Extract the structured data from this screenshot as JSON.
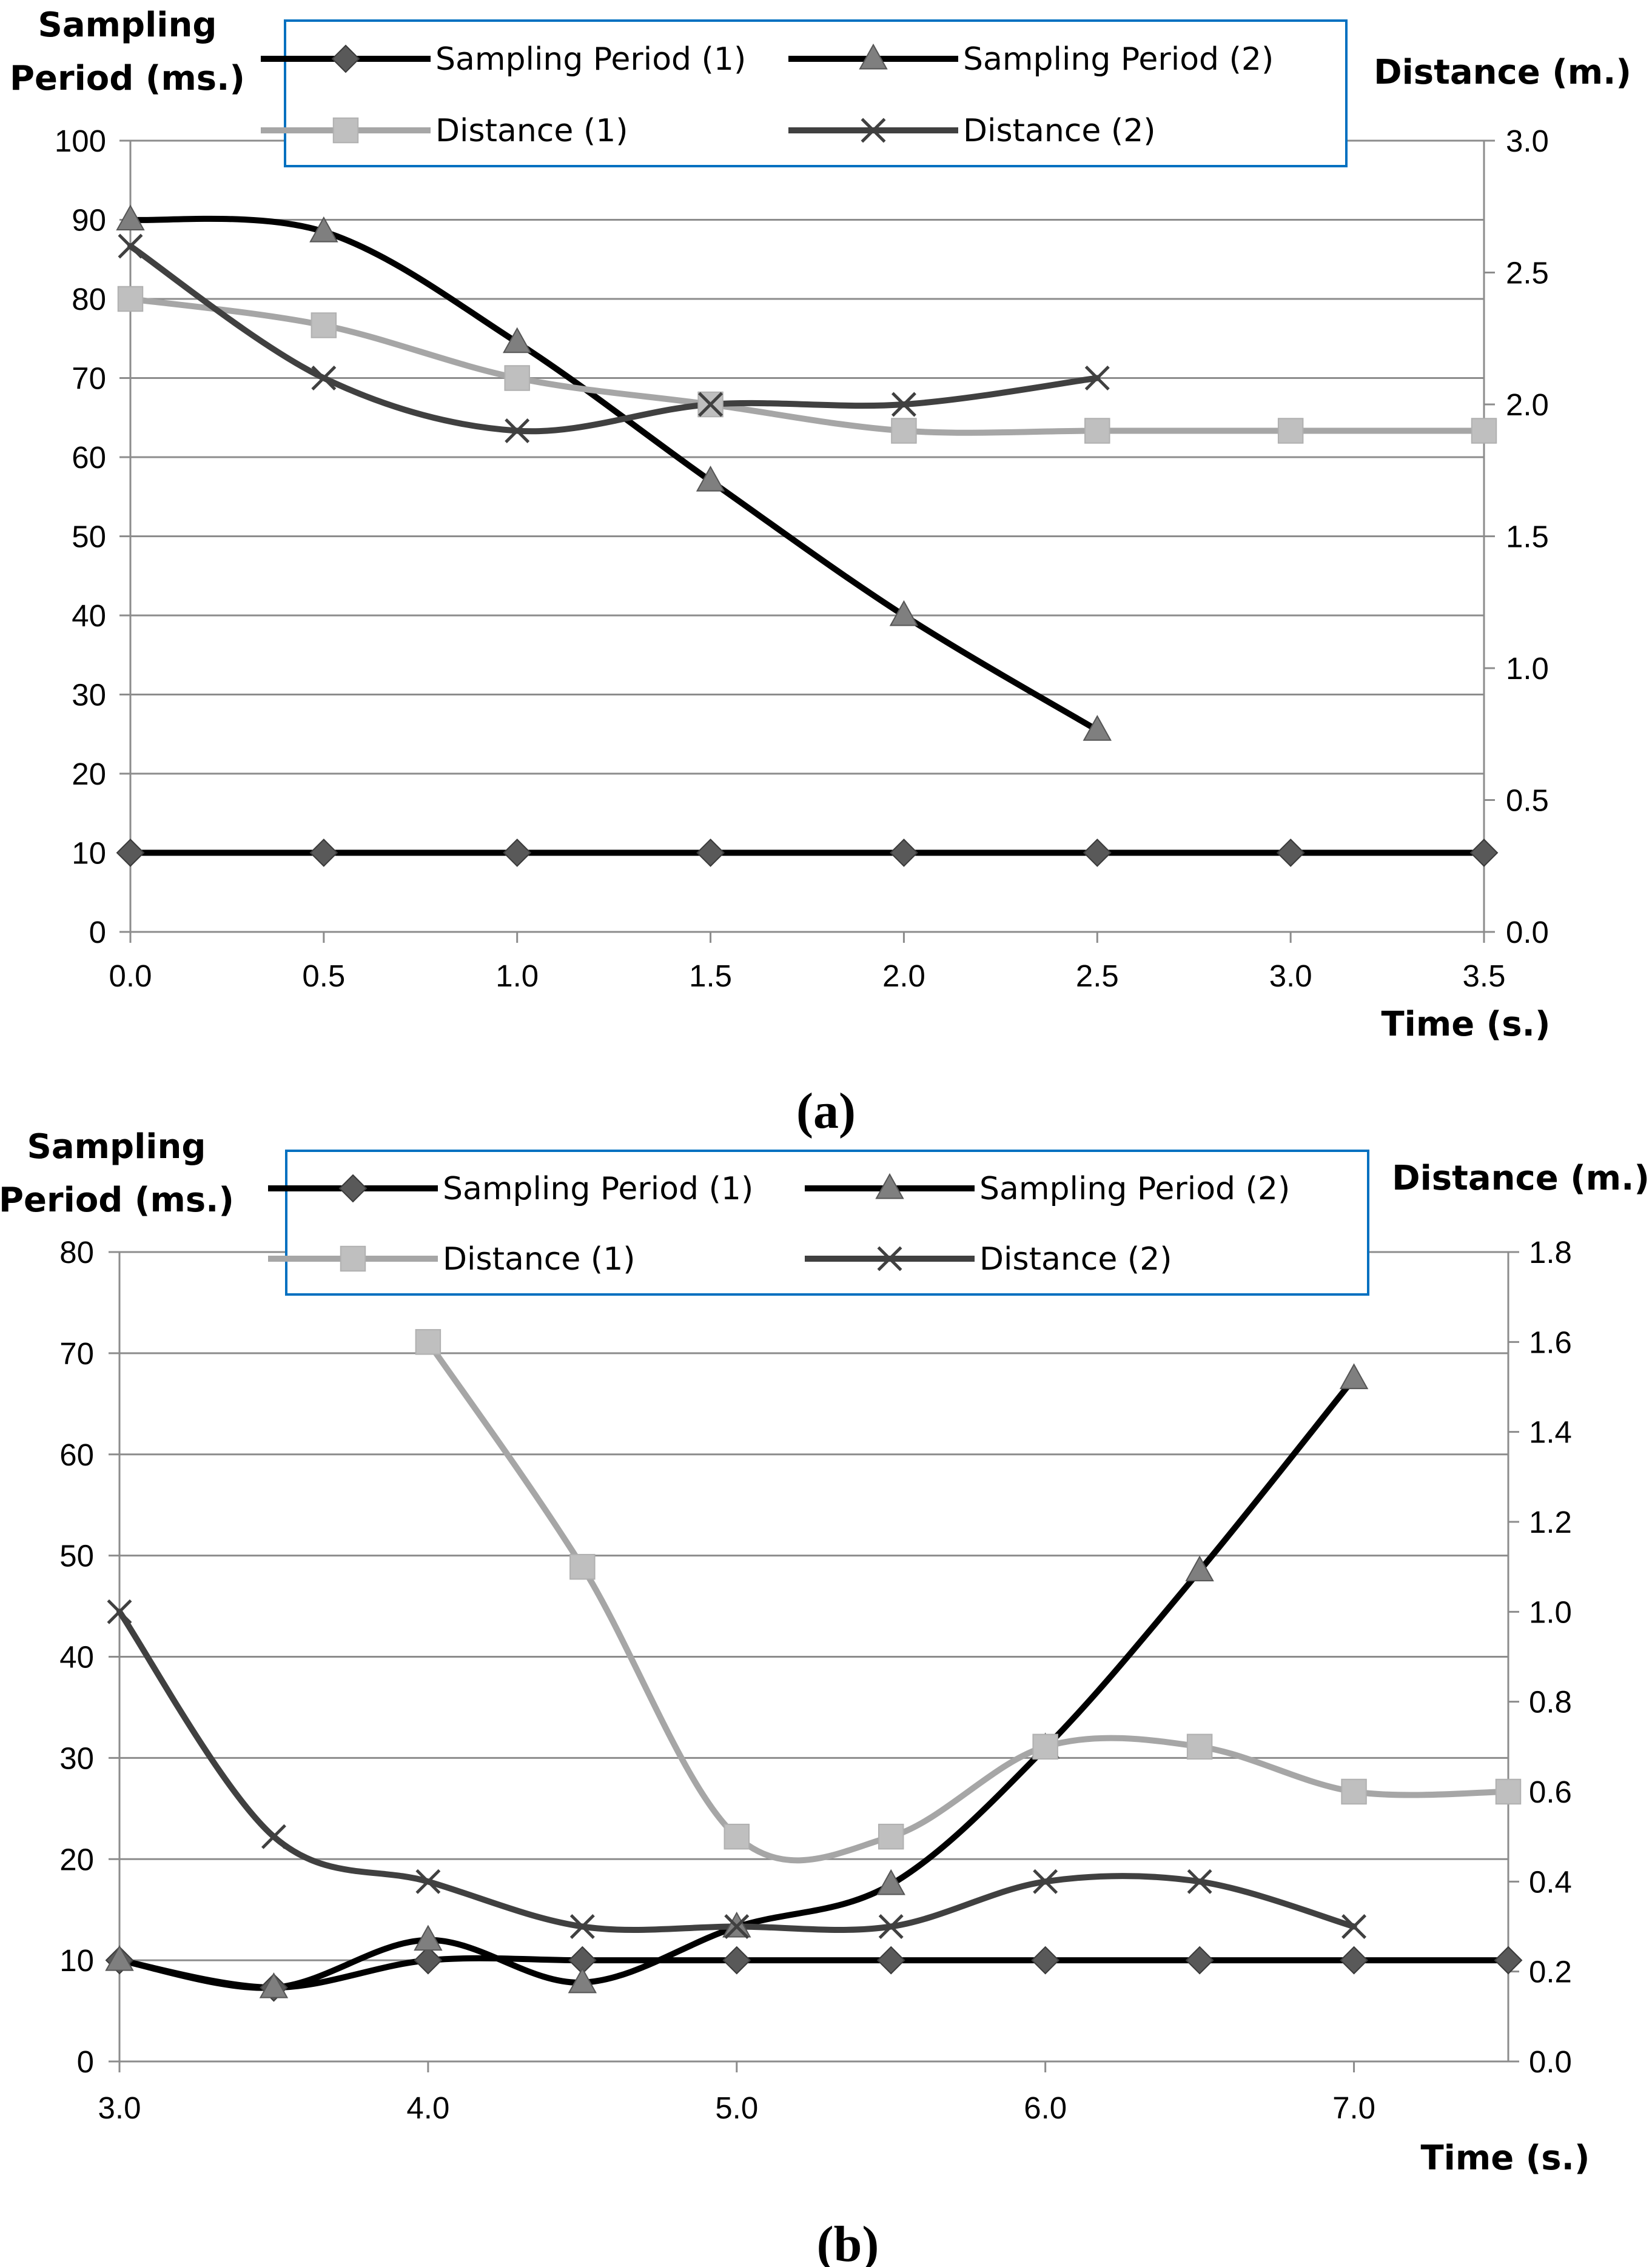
{
  "colors": {
    "sp1": "#000000",
    "sp2": "#000000",
    "d1": "#a6a6a6",
    "d2": "#404040",
    "sp1_marker": "#595959",
    "sp2_marker": "#7f7f7f",
    "d1_marker": "#bfbfbf",
    "grid": "#8c8c8c",
    "legend_border": "#0070c0"
  },
  "chart_data": [
    {
      "type": "line",
      "panel_label": "(a)",
      "ylabel_lines": [
        "Sampling",
        "Period (ms.)"
      ],
      "y2label": "Distance (m.)",
      "xlabel": "Time (s.)",
      "xlim": [
        0,
        3.5
      ],
      "x_ticks": [
        "0.0",
        "0.5",
        "1.0",
        "1.5",
        "2.0",
        "2.5",
        "3.0",
        "3.5"
      ],
      "ylim": [
        0,
        100
      ],
      "y_ticks": [
        "0",
        "10",
        "20",
        "30",
        "40",
        "50",
        "60",
        "70",
        "80",
        "90",
        "100"
      ],
      "y2lim": [
        0,
        3.0
      ],
      "y2_ticks": [
        "0.0",
        "0.5",
        "1.0",
        "1.5",
        "2.0",
        "2.5",
        "3.0"
      ],
      "grid": "horizontal",
      "legend_position": "top",
      "series": [
        {
          "name": "Sampling Period (1)",
          "axis": "left",
          "marker": "diamond",
          "x": [
            0,
            0.5,
            1.0,
            1.5,
            2.0,
            2.5,
            3.0,
            3.5
          ],
          "y": [
            10,
            10,
            10,
            10,
            10,
            10,
            10,
            10
          ]
        },
        {
          "name": "Sampling Period (2)",
          "axis": "left",
          "marker": "triangle",
          "x": [
            0,
            0.5,
            1.0,
            1.5,
            2.0,
            2.5
          ],
          "y": [
            90,
            88.5,
            74.5,
            57,
            40,
            25.5
          ]
        },
        {
          "name": "Distance (1)",
          "axis": "right",
          "marker": "square",
          "x": [
            0,
            0.5,
            1.0,
            1.5,
            2.0,
            2.5,
            3.0,
            3.5
          ],
          "y": [
            2.4,
            2.3,
            2.1,
            2.0,
            1.9,
            1.9,
            1.9,
            1.9
          ]
        },
        {
          "name": "Distance (2)",
          "axis": "right",
          "marker": "x",
          "x": [
            0,
            0.5,
            1.0,
            1.5,
            2.0,
            2.5
          ],
          "y": [
            2.6,
            2.1,
            1.9,
            2.0,
            2.0,
            2.1
          ]
        }
      ]
    },
    {
      "type": "line",
      "panel_label": "(b)",
      "ylabel_lines": [
        "Sampling",
        "Period (ms.)"
      ],
      "y2label": "Distance (m.)",
      "xlabel": "Time (s.)",
      "xlim": [
        3.0,
        7.5
      ],
      "x_ticks": [
        "3.0",
        "4.0",
        "5.0",
        "6.0",
        "7.0"
      ],
      "ylim": [
        0,
        80
      ],
      "y_ticks": [
        "0",
        "10",
        "20",
        "30",
        "40",
        "50",
        "60",
        "70",
        "80"
      ],
      "y2lim": [
        0,
        1.8
      ],
      "y2_ticks": [
        "0.0",
        "0.2",
        "0.4",
        "0.6",
        "0.8",
        "1.0",
        "1.2",
        "1.4",
        "1.6",
        "1.8"
      ],
      "grid": "horizontal",
      "legend_position": "top",
      "series": [
        {
          "name": "Sampling Period (1)",
          "axis": "left",
          "marker": "diamond",
          "x": [
            3.0,
            3.5,
            4.0,
            4.5,
            5.0,
            5.5,
            6.0,
            6.5,
            7.0,
            7.5
          ],
          "y": [
            10,
            7.3,
            10,
            10,
            10,
            10,
            10,
            10,
            10,
            10
          ]
        },
        {
          "name": "Sampling Period (2)",
          "axis": "left",
          "marker": "triangle",
          "x": [
            3.0,
            3.5,
            4.0,
            4.5,
            5.0,
            5.5,
            6.0,
            6.5,
            7.0
          ],
          "y": [
            10,
            7.3,
            12,
            7.8,
            13.3,
            17.5,
            31,
            48.5,
            67.5
          ]
        },
        {
          "name": "Distance (1)",
          "axis": "right",
          "marker": "square",
          "x": [
            4.0,
            4.5,
            5.0,
            5.5,
            6.0,
            6.5,
            7.0,
            7.5
          ],
          "y": [
            1.6,
            1.1,
            0.5,
            0.5,
            0.7,
            0.7,
            0.6,
            0.6
          ]
        },
        {
          "name": "Distance (2)",
          "axis": "right",
          "marker": "x",
          "x": [
            3.0,
            3.5,
            4.0,
            4.5,
            5.0,
            5.5,
            6.0,
            6.5,
            7.0
          ],
          "y": [
            1.0,
            0.5,
            0.4,
            0.3,
            0.3,
            0.3,
            0.4,
            0.4,
            0.3
          ]
        }
      ]
    }
  ]
}
